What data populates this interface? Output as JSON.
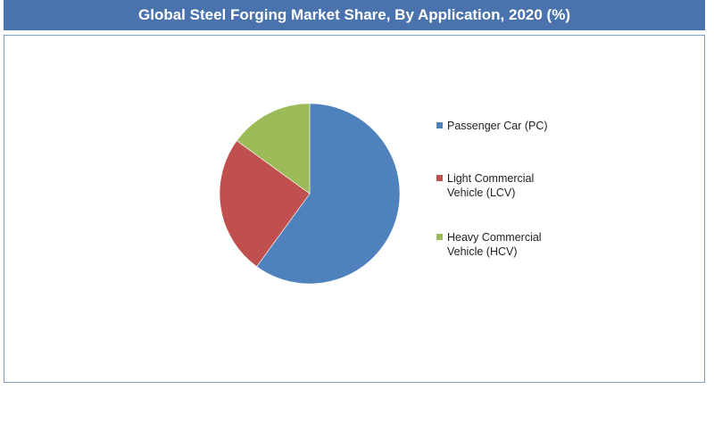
{
  "title": "Global Steel Forging Market Share, By Application, 2020 (%)",
  "chart_data": {
    "type": "pie",
    "title": "Global Steel Forging Market Share, By Application, 2020 (%)",
    "legend_position": "right",
    "start_angle_deg": 0,
    "direction": "clockwise",
    "slices": [
      {
        "label": "Passenger Car (PC)",
        "value": 60,
        "color": "#4f81bd"
      },
      {
        "label": "Light Commercial Vehicle (LCV)",
        "value": 25,
        "color": "#c0504d"
      },
      {
        "label": "Heavy Commercial Vehicle (HCV)",
        "value": 15,
        "color": "#9bbb59"
      }
    ]
  }
}
